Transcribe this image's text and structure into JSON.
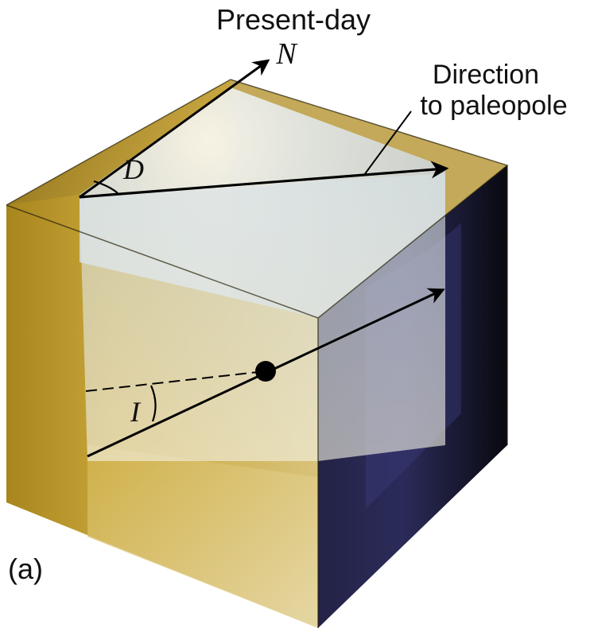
{
  "labels": {
    "present_day_line1": "Present-day",
    "present_day_line2": "N",
    "direction_line1": "Direction",
    "direction_line2": "to paleopole",
    "declination": "D",
    "inclination": "I",
    "panel": "(a)"
  },
  "colors": {
    "gold_face": "#c9a63a",
    "dark_face": "#14141f",
    "blue_highlight": "#3a3a7a",
    "plane_light": "#eef3f6",
    "ink": "#000000"
  }
}
